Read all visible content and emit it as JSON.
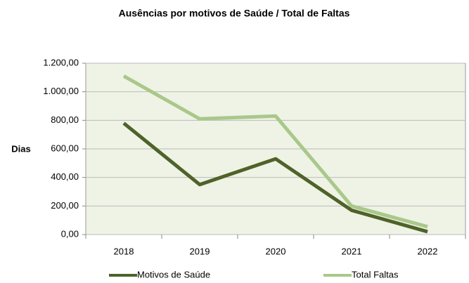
{
  "chart_data": {
    "type": "line",
    "title": "Ausências por motivos de Saúde / Total de Faltas",
    "y_label": "Dias",
    "categories": [
      "2018",
      "2019",
      "2020",
      "2021",
      "2022"
    ],
    "series": [
      {
        "name": "Motivos de Saúde",
        "color": "#4f6228",
        "values": [
          780,
          350,
          530,
          170,
          20
        ]
      },
      {
        "name": "Total Faltas",
        "color": "#a9c88a",
        "values": [
          1110,
          810,
          830,
          200,
          55
        ]
      }
    ],
    "ylim": [
      0,
      1200
    ],
    "yticks": [
      {
        "value": 0,
        "label": "0,00"
      },
      {
        "value": 200,
        "label": "200,00"
      },
      {
        "value": 400,
        "label": "400,00"
      },
      {
        "value": 600,
        "label": "600,00"
      },
      {
        "value": 800,
        "label": "800,00"
      },
      {
        "value": 1000,
        "label": "1.000,00"
      },
      {
        "value": 1200,
        "label": "1.200,00"
      }
    ],
    "grid": true,
    "legend": "bottom"
  }
}
